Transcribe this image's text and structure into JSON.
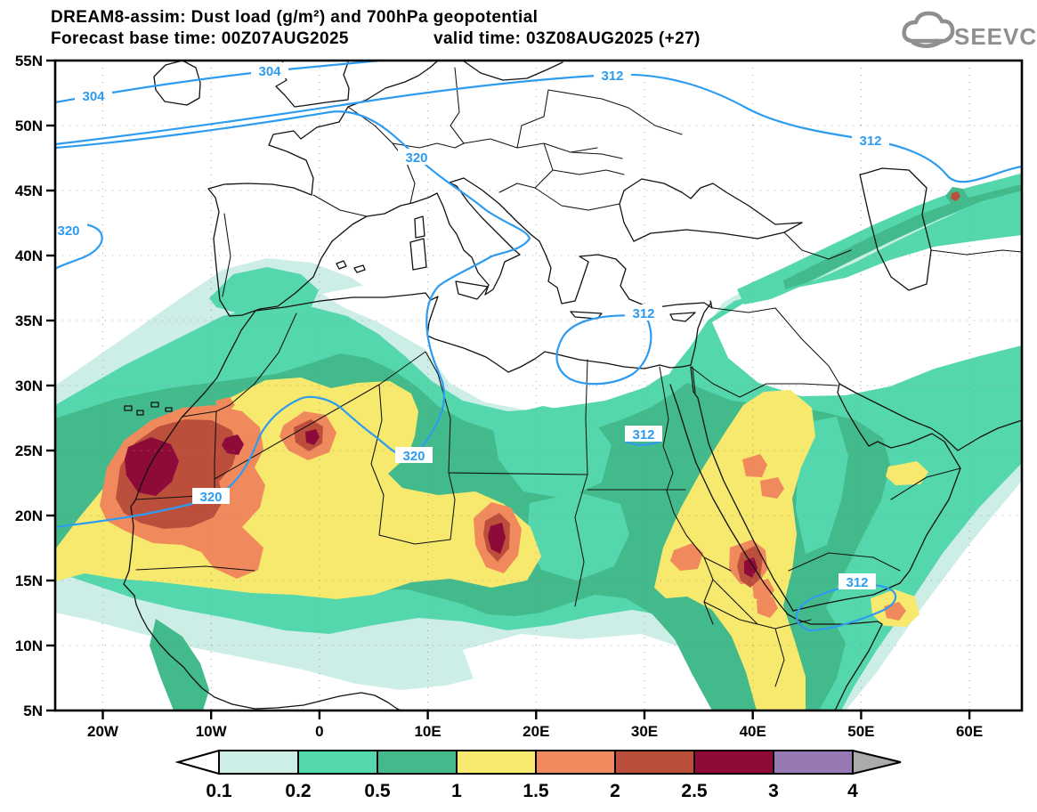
{
  "header": {
    "title_line1": "DREAM8-assim: Dust load (g/m²) and 700hPa geopotential",
    "forecast_base": "Forecast base time: 00Z07AUG2025",
    "valid_time": "valid time: 03Z08AUG2025 (+27)",
    "logo_text": "SEEVCCC"
  },
  "axes": {
    "lat_labels": [
      "55N",
      "50N",
      "45N",
      "40N",
      "35N",
      "30N",
      "25N",
      "20N",
      "15N",
      "10N",
      "5N"
    ],
    "lon_labels": [
      "20W",
      "10W",
      "0",
      "10E",
      "20E",
      "30E",
      "40E",
      "50E",
      "60E"
    ]
  },
  "colorbar": {
    "levels": [
      "0.1",
      "0.2",
      "0.5",
      "1",
      "1.5",
      "2",
      "2.5",
      "3",
      "4"
    ],
    "segment_colors": [
      "#cdeee6",
      "#55d7ad",
      "#43ba8c",
      "#f6e96d",
      "#f0895c",
      "#bc4f3c",
      "#8e0a38",
      "#9679b3"
    ],
    "left_arrow_color": "#ffffff",
    "right_arrow_color": "#ababab"
  },
  "palette": {
    "level_fills": [
      "#cdeee6",
      "#55d7ad",
      "#43ba8c",
      "#f6e96d",
      "#f0895c",
      "#bc4f3c",
      "#8e0a38"
    ],
    "gap_white": "#ffffff",
    "contour_line_color": "#2d9cf0",
    "logo_gray": "#8f8f8f"
  },
  "contour_labels": [
    {
      "value": "304"
    },
    {
      "value": "304"
    },
    {
      "value": "312"
    },
    {
      "value": "312"
    },
    {
      "value": "320"
    },
    {
      "value": "320"
    },
    {
      "value": "320"
    },
    {
      "value": "320"
    },
    {
      "value": "312"
    },
    {
      "value": "312"
    },
    {
      "value": "312"
    }
  ],
  "chart_data": {
    "type": "filled_contour_map",
    "title": "DREAM8-assim: Dust load (g/m²) and 700hPa geopotential",
    "variable": "Dust load",
    "units": "g/m²",
    "fill_levels": [
      0.1,
      0.2,
      0.5,
      1,
      1.5,
      2,
      2.5,
      3,
      4
    ],
    "geopotential_contour_values": [
      304,
      312,
      320
    ],
    "lat_range": [
      "5N",
      "55N"
    ],
    "lon_range": [
      "20W",
      "60E"
    ],
    "notable_features": [
      "dust maximum >2.5 g/m² over Mauritania/Western Sahara",
      "secondary maxima over Chad and Sudan/Red Sea coast",
      "broad 0.5-1 g/m² plume across Sahara, Sahel and Arabian Peninsula",
      "plume extension to Caucasus/Caspian in northeast"
    ]
  }
}
